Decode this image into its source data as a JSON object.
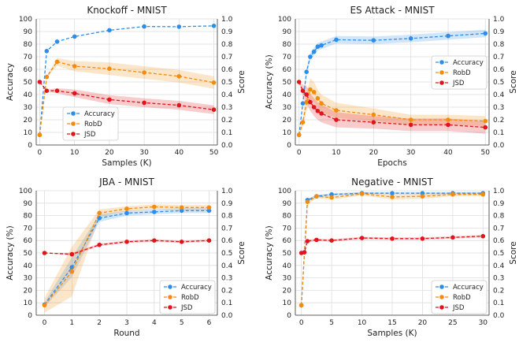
{
  "colors": {
    "accuracy": "#2c8ee8",
    "robd": "#f28c0f",
    "jsd": "#e0141a",
    "grid": "#dddddd",
    "axis": "#333333"
  },
  "chart_data": [
    {
      "type": "line",
      "title": "Knockoff - MNIST",
      "xlabel": "Samples (K)",
      "ylabel": "Accuracy",
      "ylabel_right": "Score",
      "xlim": [
        -1,
        51
      ],
      "xticks": [
        0,
        10,
        20,
        30,
        40,
        50
      ],
      "ylim": [
        0,
        100
      ],
      "yticks": [
        0,
        10,
        20,
        30,
        40,
        50,
        60,
        70,
        80,
        90,
        100
      ],
      "ylim_right": [
        0,
        1
      ],
      "yticks_right": [
        "0.0",
        "0.1",
        "0.2",
        "0.3",
        "0.4",
        "0.5",
        "0.6",
        "0.7",
        "0.8",
        "0.9",
        "1.0"
      ],
      "grid": true,
      "legend": "lower-left",
      "series": [
        {
          "name": "Accuracy",
          "axis": "left",
          "x": [
            0,
            2,
            5,
            10,
            20,
            30,
            40,
            50
          ],
          "y": [
            8,
            74.5,
            82,
            86,
            91,
            94,
            93.8,
            94.5
          ],
          "band": [
            0,
            0,
            0,
            0,
            0,
            0,
            0,
            0
          ]
        },
        {
          "name": "RobD",
          "axis": "right",
          "x": [
            0,
            2,
            5,
            10,
            20,
            30,
            40,
            50
          ],
          "y": [
            0.08,
            0.54,
            0.66,
            0.625,
            0.605,
            0.575,
            0.545,
            0.495
          ],
          "band": [
            0,
            0.01,
            0.03,
            0.04,
            0.05,
            0.05,
            0.05,
            0.05
          ]
        },
        {
          "name": "JSD",
          "axis": "right",
          "x": [
            0,
            2,
            5,
            10,
            20,
            30,
            40,
            50
          ],
          "y": [
            0.5,
            0.43,
            0.43,
            0.41,
            0.36,
            0.335,
            0.315,
            0.28
          ],
          "band": [
            0,
            0.01,
            0.02,
            0.03,
            0.035,
            0.035,
            0.035,
            0.035
          ]
        }
      ]
    },
    {
      "type": "line",
      "title": "ES Attack - MNIST",
      "xlabel": "Epochs",
      "ylabel": "Accuracy (%)",
      "ylabel_right": "Score",
      "xlim": [
        -1,
        51
      ],
      "xticks": [
        0,
        10,
        20,
        30,
        40,
        50
      ],
      "ylim": [
        0,
        100
      ],
      "yticks": [
        0,
        10,
        20,
        30,
        40,
        50,
        60,
        70,
        80,
        90,
        100
      ],
      "ylim_right": [
        0,
        1
      ],
      "yticks_right": [
        "0.0",
        "0.1",
        "0.2",
        "0.3",
        "0.4",
        "0.5",
        "0.6",
        "0.7",
        "0.8",
        "0.9",
        "1.0"
      ],
      "grid": true,
      "legend": "middle-right",
      "series": [
        {
          "name": "Accuracy",
          "axis": "left",
          "x": [
            0,
            1,
            2,
            3,
            4,
            5,
            6,
            10,
            20,
            30,
            40,
            50
          ],
          "y": [
            8,
            33,
            58,
            70,
            74,
            78,
            79,
            83.5,
            83,
            84.5,
            86.5,
            88.5
          ],
          "band": [
            0,
            2,
            3,
            3,
            3,
            3,
            3,
            3,
            3,
            3,
            3,
            3
          ]
        },
        {
          "name": "RobD",
          "axis": "right",
          "x": [
            0,
            1,
            2,
            3,
            4,
            5,
            6,
            10,
            20,
            30,
            40,
            50
          ],
          "y": [
            0.08,
            0.18,
            0.34,
            0.44,
            0.42,
            0.37,
            0.33,
            0.275,
            0.24,
            0.2,
            0.2,
            0.19
          ],
          "band": [
            0,
            0.04,
            0.07,
            0.09,
            0.08,
            0.07,
            0.07,
            0.06,
            0.05,
            0.04,
            0.04,
            0.04
          ]
        },
        {
          "name": "JSD",
          "axis": "right",
          "x": [
            0,
            1,
            2,
            3,
            4,
            5,
            6,
            10,
            20,
            30,
            40,
            50
          ],
          "y": [
            0.5,
            0.43,
            0.4,
            0.34,
            0.3,
            0.27,
            0.25,
            0.2,
            0.18,
            0.16,
            0.16,
            0.14
          ],
          "band": [
            0,
            0.05,
            0.07,
            0.07,
            0.07,
            0.07,
            0.07,
            0.06,
            0.05,
            0.05,
            0.05,
            0.05
          ]
        }
      ]
    },
    {
      "type": "line",
      "title": "JBA - MNIST",
      "xlabel": "Round",
      "ylabel": "Accuracy (%)",
      "ylabel_right": "Score",
      "xlim": [
        -0.3,
        6.3
      ],
      "xticks": [
        0,
        1,
        2,
        3,
        4,
        5,
        6
      ],
      "ylim": [
        0,
        100
      ],
      "yticks": [
        0,
        10,
        20,
        30,
        40,
        50,
        60,
        70,
        80,
        90,
        100
      ],
      "ylim_right": [
        0,
        1
      ],
      "yticks_right": [
        "0.0",
        "0.1",
        "0.2",
        "0.3",
        "0.4",
        "0.5",
        "0.6",
        "0.7",
        "0.8",
        "0.9",
        "1.0"
      ],
      "grid": true,
      "legend": "lower-right",
      "series": [
        {
          "name": "Accuracy",
          "axis": "left",
          "x": [
            0,
            1,
            2,
            3,
            4,
            5,
            6
          ],
          "y": [
            8.5,
            38.5,
            78,
            82,
            83,
            84,
            84
          ],
          "band": [
            2,
            8,
            3,
            2,
            2,
            2,
            2
          ]
        },
        {
          "name": "RobD",
          "axis": "right",
          "x": [
            0,
            1,
            2,
            3,
            4,
            5,
            6
          ],
          "y": [
            0.08,
            0.35,
            0.82,
            0.855,
            0.87,
            0.865,
            0.865
          ],
          "band": [
            0.06,
            0.2,
            0.03,
            0.02,
            0.02,
            0.02,
            0.02
          ]
        },
        {
          "name": "JSD",
          "axis": "right",
          "x": [
            0,
            1,
            2,
            3,
            4,
            5,
            6
          ],
          "y": [
            0.5,
            0.49,
            0.565,
            0.59,
            0.6,
            0.59,
            0.6
          ],
          "band": [
            0,
            0.01,
            0.01,
            0.01,
            0.01,
            0.01,
            0.01
          ]
        }
      ]
    },
    {
      "type": "line",
      "title": "Negative - MNIST",
      "xlabel": "Samples (K)",
      "ylabel": "Accuracy (%)",
      "ylabel_right": "Score",
      "xlim": [
        -1,
        31
      ],
      "xticks": [
        0,
        5,
        10,
        15,
        20,
        25,
        30
      ],
      "ylim": [
        0,
        100
      ],
      "yticks": [
        0,
        10,
        20,
        30,
        40,
        50,
        60,
        70,
        80,
        90,
        100
      ],
      "ylim_right": [
        0,
        1
      ],
      "yticks_right": [
        "0.0",
        "0.1",
        "0.2",
        "0.3",
        "0.4",
        "0.5",
        "0.6",
        "0.7",
        "0.8",
        "0.9",
        "1.0"
      ],
      "grid": true,
      "legend": "lower-right",
      "series": [
        {
          "name": "Accuracy",
          "axis": "left",
          "x": [
            0,
            1,
            2.5,
            5,
            10,
            15,
            20,
            25,
            30
          ],
          "y": [
            8,
            92.5,
            95.5,
            97,
            98,
            98,
            98,
            98,
            98
          ],
          "band": [
            0,
            1,
            1,
            1,
            1,
            1,
            1,
            1,
            1
          ]
        },
        {
          "name": "RobD",
          "axis": "right",
          "x": [
            0,
            1,
            2.5,
            5,
            10,
            15,
            20,
            25,
            30
          ],
          "y": [
            0.08,
            0.91,
            0.955,
            0.945,
            0.975,
            0.95,
            0.955,
            0.97,
            0.97
          ],
          "band": [
            0,
            0.02,
            0.015,
            0.015,
            0.015,
            0.02,
            0.02,
            0.015,
            0.015
          ]
        },
        {
          "name": "JSD",
          "axis": "right",
          "x": [
            0,
            0.5,
            1,
            2.5,
            5,
            10,
            15,
            20,
            25,
            30
          ],
          "y": [
            0.5,
            0.505,
            0.595,
            0.605,
            0.6,
            0.62,
            0.615,
            0.615,
            0.625,
            0.635
          ],
          "band": [
            0,
            0,
            0.01,
            0.01,
            0.01,
            0.01,
            0.01,
            0.01,
            0.01,
            0.01
          ]
        }
      ]
    }
  ]
}
